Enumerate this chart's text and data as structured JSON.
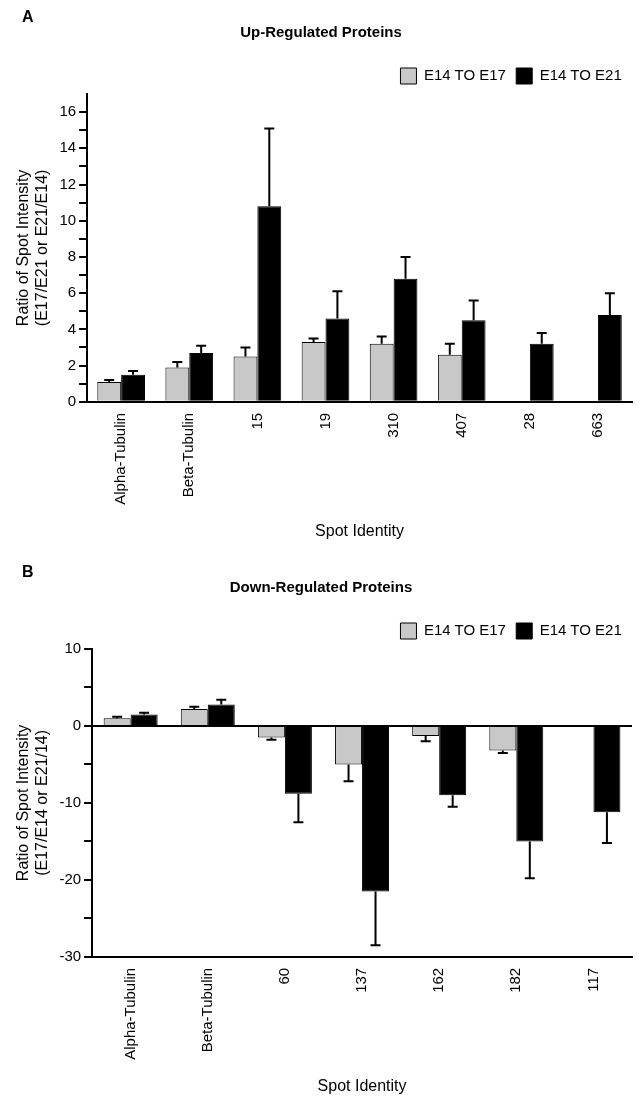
{
  "chart_data": [
    {
      "type": "bar",
      "title": "Up-Regulated Proteins",
      "xlabel": "Spot Identity",
      "ylabel": "Ratio of Spot Intensity\n(E17/E21 or E21/E14)",
      "annotations": [
        "A"
      ],
      "categories": [
        "Alpha-Tubulin",
        "Beta-Tubulin",
        "15",
        "19",
        "310",
        "407",
        "28",
        "663"
      ],
      "series": [
        {
          "name": "E14 TO E17",
          "color": "#c8c8c8",
          "values": [
            1.1,
            1.9,
            2.5,
            3.3,
            3.2,
            2.6,
            null,
            null
          ],
          "errors": [
            [
              1.1,
              1.2
            ],
            [
              1.9,
              2.2
            ],
            [
              2.5,
              3.0
            ],
            [
              3.3,
              3.5
            ],
            [
              3.2,
              3.6
            ],
            [
              2.6,
              3.2
            ],
            null,
            null
          ]
        },
        {
          "name": "E14 TO E21",
          "color": "#000000",
          "values": [
            1.5,
            2.7,
            10.8,
            4.6,
            6.8,
            4.5,
            3.2,
            4.8
          ],
          "errors": [
            [
              1.5,
              1.7
            ],
            [
              2.7,
              3.1
            ],
            [
              10.8,
              15.1
            ],
            [
              4.6,
              6.1
            ],
            [
              6.8,
              8.0
            ],
            [
              4.5,
              5.6
            ],
            [
              3.2,
              3.8
            ],
            [
              4.8,
              6.0
            ]
          ]
        }
      ],
      "ylim": [
        0,
        17
      ],
      "yticks": [
        0,
        {
          "value": 1,
          "label": null
        },
        2,
        {
          "value": 3,
          "label": null
        },
        4,
        {
          "value": 5,
          "label": null
        },
        6,
        {
          "value": 7,
          "label": null
        },
        8,
        {
          "value": 9,
          "label": null
        },
        10,
        {
          "value": 11,
          "label": null
        },
        12,
        {
          "value": 13,
          "label": null
        },
        14,
        {
          "value": 15,
          "label": null
        },
        16
      ],
      "grid": false,
      "legend": "top right"
    },
    {
      "type": "bar",
      "title": "Down-Regulated Proteins",
      "xlabel": "Spot Identity",
      "ylabel": "Ratio of Spot Intensity\n(E17/E14 or E21/14)",
      "annotations": [
        "B"
      ],
      "categories": [
        "Alpha-Tubulin",
        "Beta-Tubulin",
        "60",
        "137",
        "162",
        "182",
        "117"
      ],
      "series": [
        {
          "name": "E14 TO E17",
          "color": "#c8c8c8",
          "values": [
            1.0,
            2.2,
            -1.5,
            -5.0,
            -1.3,
            -3.2,
            null
          ],
          "errors": [
            [
              1.0,
              1.2
            ],
            [
              2.2,
              2.5
            ],
            [
              -1.8,
              -1.5
            ],
            [
              -7.2,
              -5.0
            ],
            [
              -2.0,
              -1.3
            ],
            [
              -3.5,
              -3.2
            ],
            null
          ]
        },
        {
          "name": "E14 TO E21",
          "color": "#000000",
          "values": [
            1.5,
            2.8,
            -8.8,
            -21.5,
            -9.0,
            -15.0,
            -11.2
          ],
          "errors": [
            [
              1.5,
              1.7
            ],
            [
              2.8,
              3.4
            ],
            [
              -12.5,
              -8.8
            ],
            [
              -28.5,
              -21.5
            ],
            [
              -10.5,
              -9.0
            ],
            [
              -19.8,
              -15.0
            ],
            [
              -15.2,
              -11.2
            ]
          ]
        }
      ],
      "ylim": [
        -30,
        10
      ],
      "yticks": [
        -30,
        {
          "value": -25,
          "label": null
        },
        -20,
        {
          "value": -15,
          "label": null
        },
        -10,
        {
          "value": -5,
          "label": null
        },
        0,
        {
          "value": 5,
          "label": null
        },
        10
      ],
      "ref_lines": [
        {
          "axis": "y",
          "value": 0,
          "color": "#000000"
        }
      ],
      "grid": false,
      "legend": "top right"
    }
  ]
}
